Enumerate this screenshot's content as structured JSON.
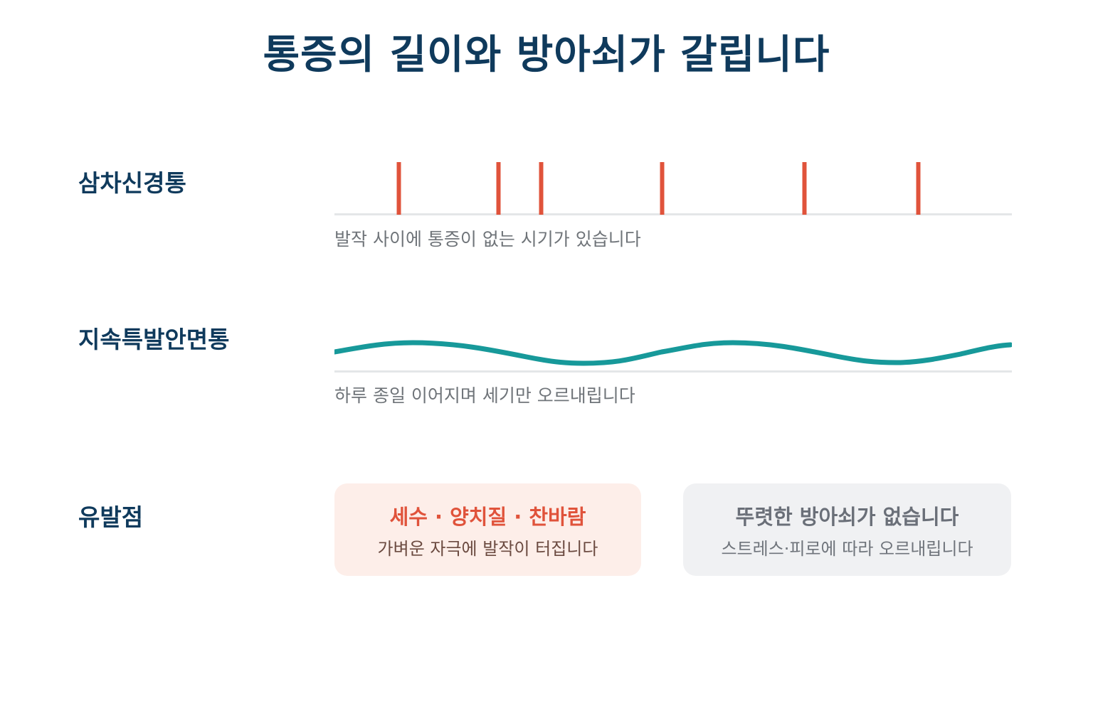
{
  "title": "통증의 길이와 방아쇠가 갈립니다",
  "colors": {
    "title": "#0f3a5c",
    "spike": "#e0533b",
    "wave": "#17999a",
    "baseline": "#e4e6e8",
    "caption": "#6f7479",
    "trigger_card_bg": "#fdeee9",
    "neutral_card_bg": "#f0f1f3"
  },
  "rows": [
    {
      "label": "삼차신경통",
      "caption": "발작 사이에 통증이 없는 시기가 있습니다",
      "pattern": "intermittent-spikes"
    },
    {
      "label": "지속특발안면통",
      "caption": "하루 종일 이어지며 세기만 오르내립니다",
      "pattern": "continuous-wave"
    },
    {
      "label": "유발점",
      "cards": [
        {
          "title": "세수 · 양치질 · 찬바람",
          "subtitle": "가벼운 자극에 발작이 터집니다",
          "style": "trigger"
        },
        {
          "title": "뚜렷한 방아쇠가 없습니다",
          "subtitle": "스트레스·피로에 따라 오르내립니다",
          "style": "neutral"
        }
      ]
    }
  ]
}
